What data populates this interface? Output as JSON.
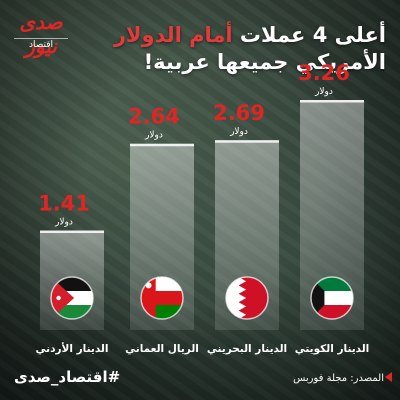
{
  "brand": {
    "line1": "صدى نيوز",
    "line2": "اقتصاد"
  },
  "title": {
    "line1_a": "أعلى 4 عملات ",
    "line1_hl": "أمام الدولار",
    "line2": "الأمريكي جميعها عربية!"
  },
  "accent_color": "#e02525",
  "chart_data": {
    "type": "bar",
    "categories": [
      "الدينار الأردني",
      "الريال العماني",
      "الدينار البحريني",
      "الدينار الكويتي"
    ],
    "values": [
      1.41,
      2.64,
      2.69,
      3.26
    ],
    "value_labels": [
      "1.41",
      "2.64",
      "2.69",
      "3.26"
    ],
    "unit_label": "دولار",
    "flags": [
      "jordan-flag",
      "oman-flag",
      "bahrain-flag",
      "kuwait-flag"
    ],
    "ylim": [
      0,
      3.26
    ],
    "grid": false,
    "value_color": "#e02525"
  },
  "footer": {
    "hashtag": "#اقتصاد_صدى",
    "source": "المصدر: مجلة فوربس"
  }
}
